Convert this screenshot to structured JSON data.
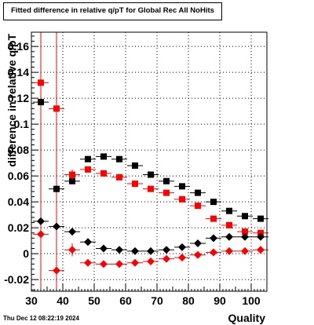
{
  "title": "Fitted difference in relative q/pT for Global Rec All NoHits",
  "timestamp": "Thu Dec 12 08:22:19 2024",
  "chart_data": {
    "type": "scatter",
    "title": "Fitted difference in relative q/pT for Global Rec All NoHits",
    "xlabel": "Quality",
    "ylabel": "difference in relative q/pT",
    "xlim": [
      30,
      105
    ],
    "ylim": [
      -0.029,
      0.171
    ],
    "grid": true,
    "x_ticks": [
      "30",
      "40",
      "50",
      "60",
      "70",
      "80",
      "90",
      "100"
    ],
    "x_tick_values": [
      30,
      40,
      50,
      60,
      70,
      80,
      90,
      100
    ],
    "y_ticks": [
      "-0.02",
      "0",
      "0.02",
      "0.04",
      "0.06",
      "0.08",
      "0.1",
      "0.12",
      "0.14",
      "0.16"
    ],
    "y_tick_values": [
      -0.02,
      0,
      0.02,
      0.04,
      0.06,
      0.08,
      0.1,
      0.12,
      0.14,
      0.16
    ],
    "vlines": [
      33,
      38
    ],
    "series": [
      {
        "marker": "square",
        "color": "#000000",
        "x": [
          33,
          38,
          43,
          48,
          53,
          58,
          63,
          68,
          73,
          78,
          83,
          88,
          93,
          98,
          103
        ],
        "y": [
          0.117,
          0.05,
          0.056,
          0.073,
          0.075,
          0.073,
          0.068,
          0.061,
          0.056,
          0.052,
          0.047,
          0.04,
          0.033,
          0.029,
          0.027
        ],
        "yerr": [
          0.002,
          0.002,
          0.002,
          0.002,
          0.001,
          0.001,
          0.001,
          0.001,
          0.001,
          0.001,
          0.001,
          0.001,
          0.001,
          0.001,
          0.001
        ]
      },
      {
        "marker": "square",
        "color": "#ff0000",
        "x": [
          33,
          38,
          43,
          48,
          53,
          58,
          63,
          68,
          73,
          78,
          83,
          88,
          93,
          98,
          103
        ],
        "y": [
          0.132,
          0.112,
          0.061,
          0.065,
          0.062,
          0.059,
          0.054,
          0.05,
          0.047,
          0.042,
          0.037,
          0.027,
          0.022,
          0.017,
          0.016
        ],
        "yerr": [
          0.004,
          0.004,
          0.004,
          0.002,
          0.001,
          0.001,
          0.001,
          0.001,
          0.001,
          0.001,
          0.001,
          0.001,
          0.001,
          0.001,
          0.001
        ]
      },
      {
        "marker": "diamond",
        "color": "#000000",
        "x": [
          33,
          38,
          43,
          48,
          53,
          58,
          63,
          68,
          73,
          78,
          83,
          88,
          93,
          98,
          103
        ],
        "y": [
          0.025,
          0.021,
          0.017,
          0.009,
          0.004,
          0.003,
          0.002,
          0.002,
          0.003,
          0.005,
          0.008,
          0.012,
          0.013,
          0.013,
          0.013
        ],
        "yerr": [
          0.002,
          0.002,
          0.002,
          0.001,
          0.001,
          0.001,
          0.001,
          0.001,
          0.001,
          0.001,
          0.001,
          0.001,
          0.001,
          0.001,
          0.001
        ]
      },
      {
        "marker": "diamond",
        "color": "#ff0000",
        "x": [
          33,
          38,
          43,
          48,
          53,
          58,
          63,
          68,
          73,
          78,
          83,
          88,
          93,
          98,
          103
        ],
        "y": [
          0.015,
          -0.013,
          0.003,
          -0.007,
          -0.008,
          -0.008,
          -0.007,
          -0.006,
          -0.004,
          -0.003,
          -0.001,
          0.001,
          0.002,
          0.002,
          0.003
        ],
        "yerr": [
          0.004,
          0.005,
          0.005,
          0.002,
          0.001,
          0.001,
          0.001,
          0.001,
          0.001,
          0.001,
          0.001,
          0.001,
          0.001,
          0.001,
          0.001
        ]
      }
    ]
  }
}
